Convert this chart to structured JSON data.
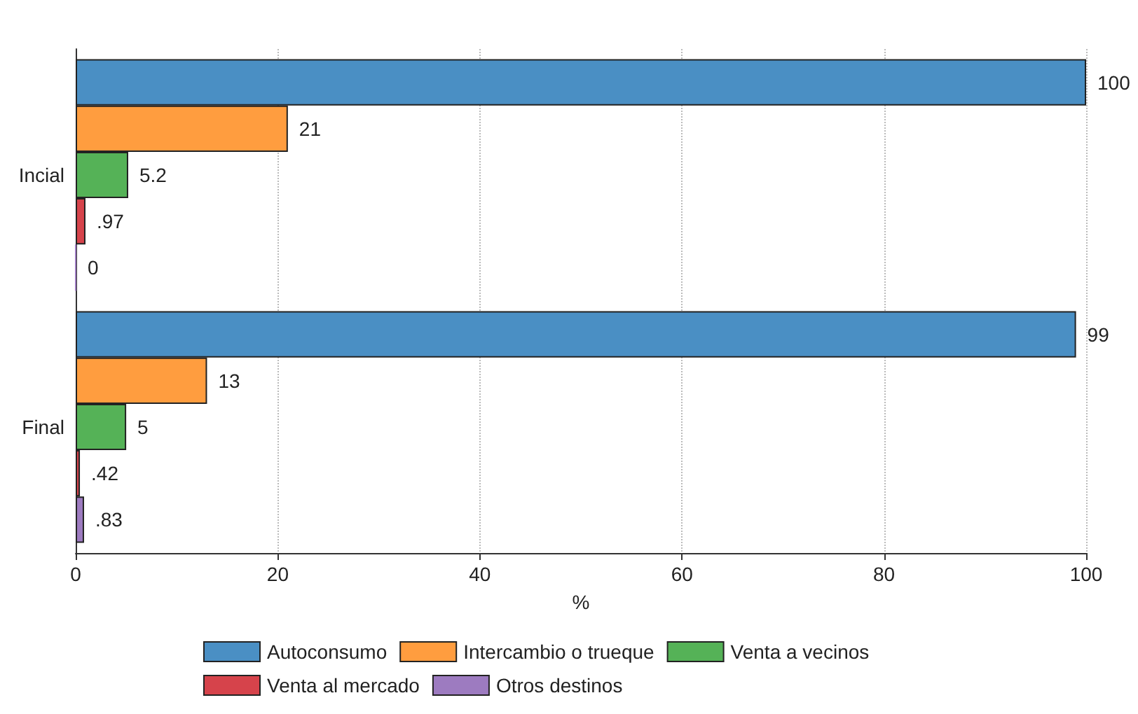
{
  "chart_data": {
    "type": "bar",
    "orientation": "horizontal",
    "categories": [
      "Incial",
      "Final"
    ],
    "xlabel": "%",
    "series": [
      {
        "name": "Autoconsumo",
        "color": "#4a8fc4",
        "values": [
          100,
          99
        ],
        "value_labels": [
          "100",
          "99"
        ]
      },
      {
        "name": "Intercambio o trueque",
        "color": "#ff9d3f",
        "values": [
          21,
          13
        ],
        "value_labels": [
          "21",
          "13"
        ]
      },
      {
        "name": "Venta a vecinos",
        "color": "#55b257",
        "values": [
          5.2,
          5
        ],
        "value_labels": [
          "5.2",
          "5"
        ]
      },
      {
        "name": "Venta al mercado",
        "color": "#d6434b",
        "values": [
          0.97,
          0.42
        ],
        "value_labels": [
          ".97",
          ".42"
        ]
      },
      {
        "name": "Otros destinos",
        "color": "#9d7bc0",
        "values": [
          0,
          0.83
        ],
        "value_labels": [
          "0",
          ".83"
        ]
      }
    ],
    "xlim": [
      0,
      100
    ],
    "xticks": [
      0,
      20,
      40,
      60,
      80,
      100
    ],
    "grid": "x",
    "legend": "bottom"
  }
}
